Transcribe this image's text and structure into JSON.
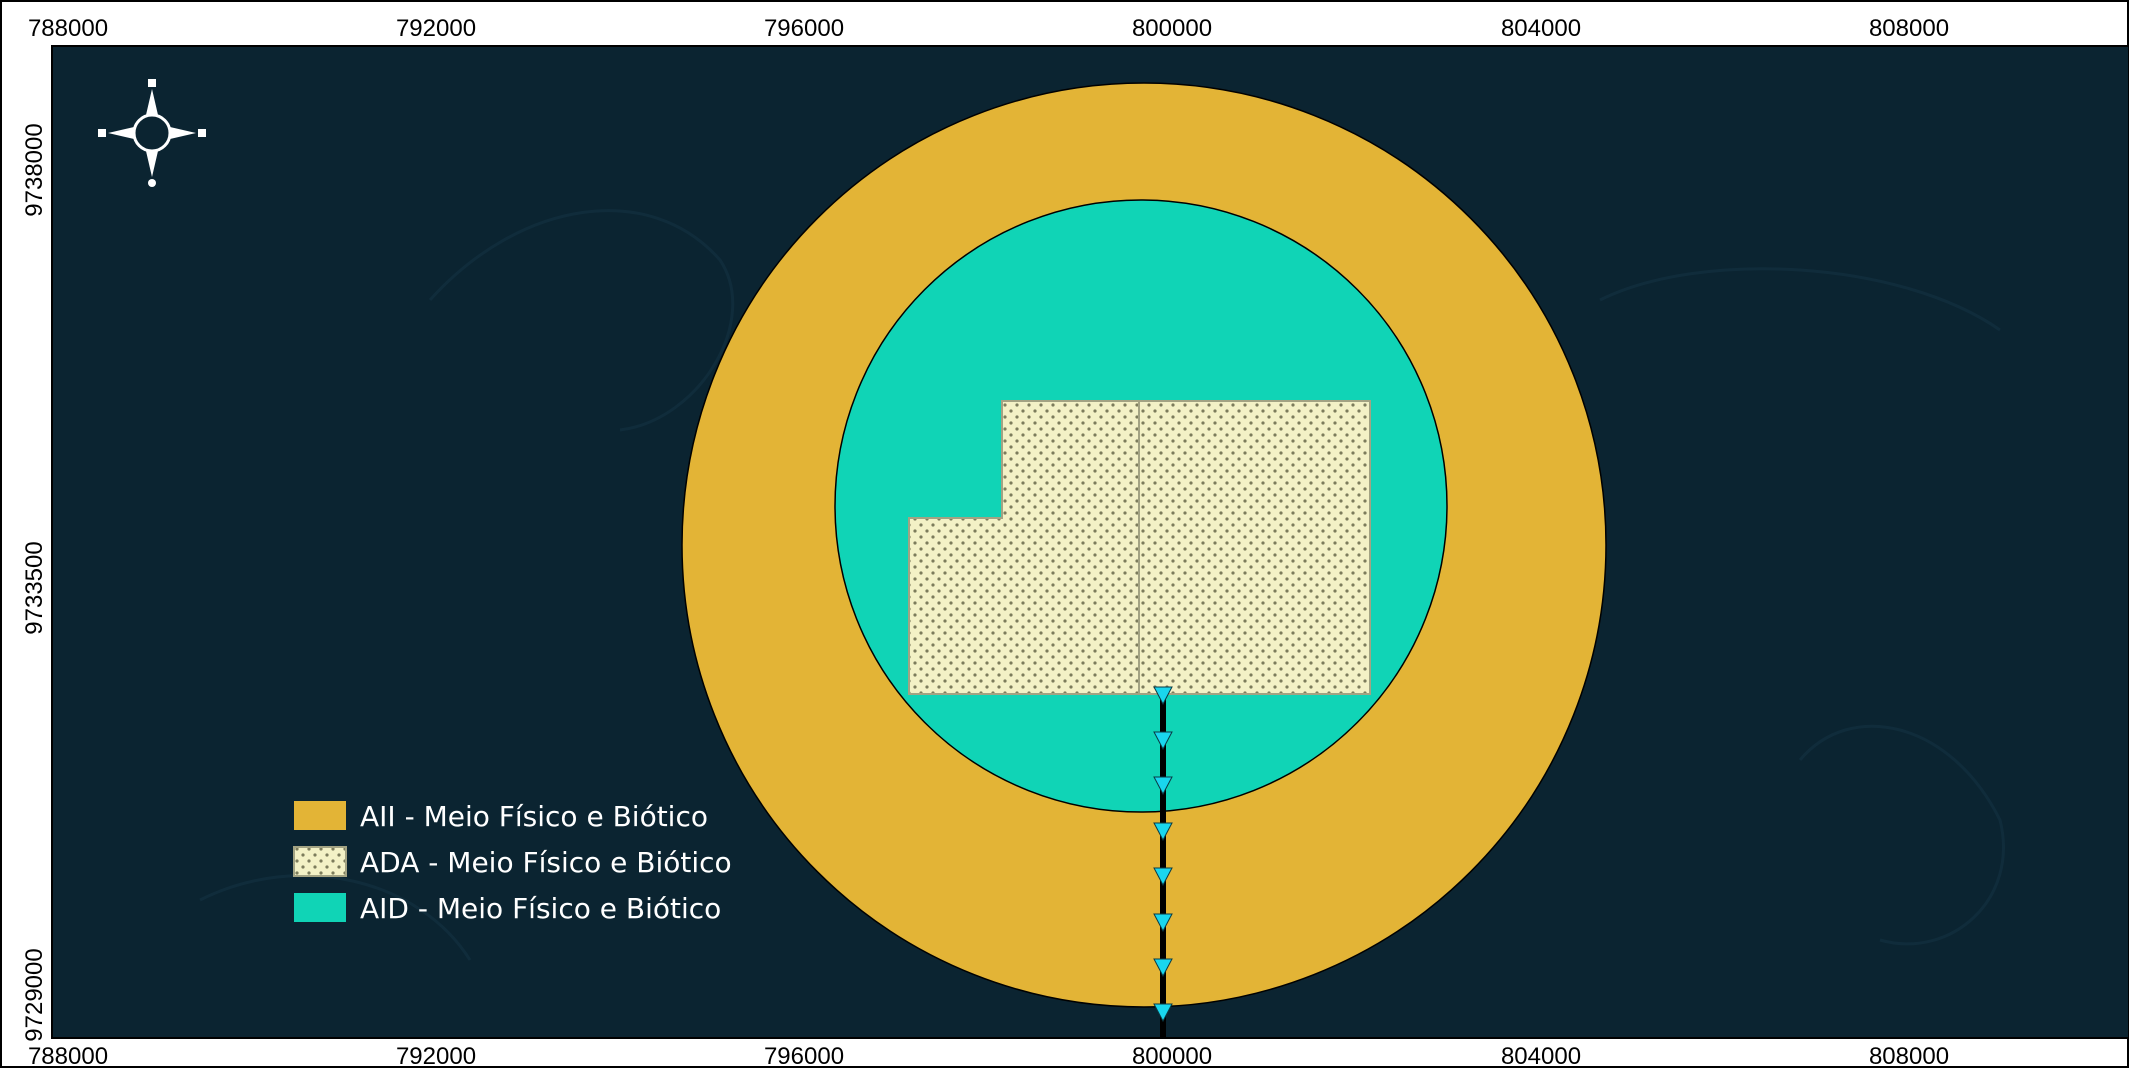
{
  "map": {
    "x_ticks_top": [
      "788000",
      "792000",
      "796000",
      "800000",
      "804000",
      "808000"
    ],
    "x_ticks_bottom": [
      "788000",
      "792000",
      "796000",
      "800000",
      "804000",
      "808000"
    ],
    "y_ticks_left": [
      "9738000",
      "9733500",
      "9729000"
    ],
    "background_color": "#0b2431",
    "colors": {
      "aii": "#e3b436",
      "aid": "#10d4b6",
      "ada": "#f3f1c6",
      "ada_dots": "#7c7c5c",
      "route_line": "#000000",
      "route_marker": "#19d6ee"
    },
    "north_arrow_icon": "compass-rose-icon"
  },
  "legend": {
    "items": [
      {
        "label": "AII - Meio Físico e Biótico",
        "symbol": "solid",
        "color": "#e3b436"
      },
      {
        "label": "ADA -  Meio Físico e Biótico",
        "symbol": "dotted",
        "color": "#f3f1c6"
      },
      {
        "label": "AID - Meio Físico e Biótico",
        "symbol": "solid",
        "color": "#10d4b6"
      }
    ]
  }
}
